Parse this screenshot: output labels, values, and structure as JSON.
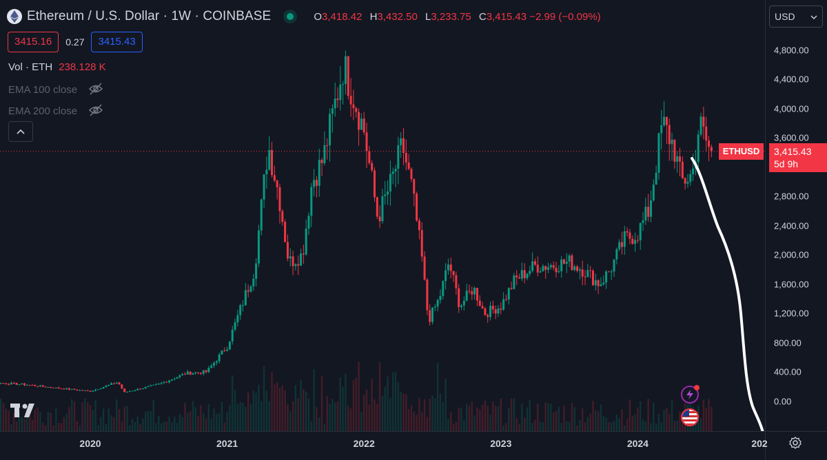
{
  "header": {
    "title": "Ethereum / U.S. Dollar · 1W · COINBASE",
    "ohlc": [
      {
        "k": "O",
        "v": "3,418.42"
      },
      {
        "k": "H",
        "v": "3,432.50"
      },
      {
        "k": "L",
        "v": "3,233.75"
      },
      {
        "k": "C",
        "v": "3,415.43 −2.99 (−0.09%)"
      }
    ]
  },
  "bidask": {
    "sell": "3415.16",
    "spread": "0.27",
    "buy": "3415.43"
  },
  "indicators": {
    "volume": {
      "label": "Vol · ETH",
      "value": "238.128 K"
    },
    "ema100": "EMA 100 close",
    "ema200": "EMA 200 close"
  },
  "currency": "USD",
  "last_price": {
    "symbol": "ETHUSD",
    "price": "3,415.43",
    "countdown": "5d 9h"
  },
  "colors": {
    "up": "#089981",
    "down": "#f23645",
    "background": "#131722",
    "drawing": "#ffffff"
  },
  "icons": [
    "ethereum-logo-icon",
    "eye-hidden-icon",
    "chevron-up-icon",
    "tradingview-logo-icon",
    "lightning-icon",
    "us-flag-icon",
    "settings-gear-icon",
    "chevron-down-icon"
  ],
  "chart_data": {
    "type": "candlestick",
    "symbol": "ETHUSD",
    "interval": "1W",
    "y_ticks": [
      "4,800.00",
      "4,400.00",
      "4,000.00",
      "3,600.00",
      "2,800.00",
      "2,400.00",
      "2,000.00",
      "1,600.00",
      "1,200.00",
      "800.00",
      "400.00",
      "0.00"
    ],
    "x_ticks": [
      "2020",
      "2021",
      "2022",
      "2023",
      "2024",
      "202"
    ],
    "ylim": [
      -400,
      4900
    ],
    "close_anchors": [
      {
        "t": 2019.0,
        "p": 130
      },
      {
        "t": 2019.3,
        "p": 250
      },
      {
        "t": 2019.5,
        "p": 230
      },
      {
        "t": 2019.75,
        "p": 180
      },
      {
        "t": 2020.0,
        "p": 135
      },
      {
        "t": 2020.2,
        "p": 260
      },
      {
        "t": 2020.25,
        "p": 120
      },
      {
        "t": 2020.5,
        "p": 230
      },
      {
        "t": 2020.7,
        "p": 380
      },
      {
        "t": 2020.85,
        "p": 400
      },
      {
        "t": 2021.0,
        "p": 750
      },
      {
        "t": 2021.2,
        "p": 1800
      },
      {
        "t": 2021.3,
        "p": 3500
      },
      {
        "t": 2021.38,
        "p": 2800
      },
      {
        "t": 2021.45,
        "p": 1900
      },
      {
        "t": 2021.55,
        "p": 2000
      },
      {
        "t": 2021.62,
        "p": 3000
      },
      {
        "t": 2021.7,
        "p": 3300
      },
      {
        "t": 2021.85,
        "p": 4600
      },
      {
        "t": 2021.95,
        "p": 4000
      },
      {
        "t": 2022.0,
        "p": 3700
      },
      {
        "t": 2022.1,
        "p": 2500
      },
      {
        "t": 2022.2,
        "p": 3000
      },
      {
        "t": 2022.28,
        "p": 3500
      },
      {
        "t": 2022.35,
        "p": 2900
      },
      {
        "t": 2022.42,
        "p": 2000
      },
      {
        "t": 2022.47,
        "p": 1100
      },
      {
        "t": 2022.55,
        "p": 1400
      },
      {
        "t": 2022.62,
        "p": 1900
      },
      {
        "t": 2022.7,
        "p": 1300
      },
      {
        "t": 2022.8,
        "p": 1550
      },
      {
        "t": 2022.88,
        "p": 1200
      },
      {
        "t": 2023.0,
        "p": 1300
      },
      {
        "t": 2023.1,
        "p": 1650
      },
      {
        "t": 2023.25,
        "p": 1850
      },
      {
        "t": 2023.35,
        "p": 1850
      },
      {
        "t": 2023.5,
        "p": 1900
      },
      {
        "t": 2023.6,
        "p": 1800
      },
      {
        "t": 2023.72,
        "p": 1600
      },
      {
        "t": 2023.8,
        "p": 1800
      },
      {
        "t": 2023.9,
        "p": 2200
      },
      {
        "t": 2024.0,
        "p": 2300
      },
      {
        "t": 2024.08,
        "p": 2600
      },
      {
        "t": 2024.18,
        "p": 3800
      },
      {
        "t": 2024.26,
        "p": 3500
      },
      {
        "t": 2024.32,
        "p": 3000
      },
      {
        "t": 2024.4,
        "p": 3100
      },
      {
        "t": 2024.45,
        "p": 3800
      },
      {
        "t": 2024.5,
        "p": 3550
      },
      {
        "t": 2024.53,
        "p": 3415
      }
    ],
    "last_close": 3415.43,
    "grid": false,
    "legend": "top-left"
  }
}
